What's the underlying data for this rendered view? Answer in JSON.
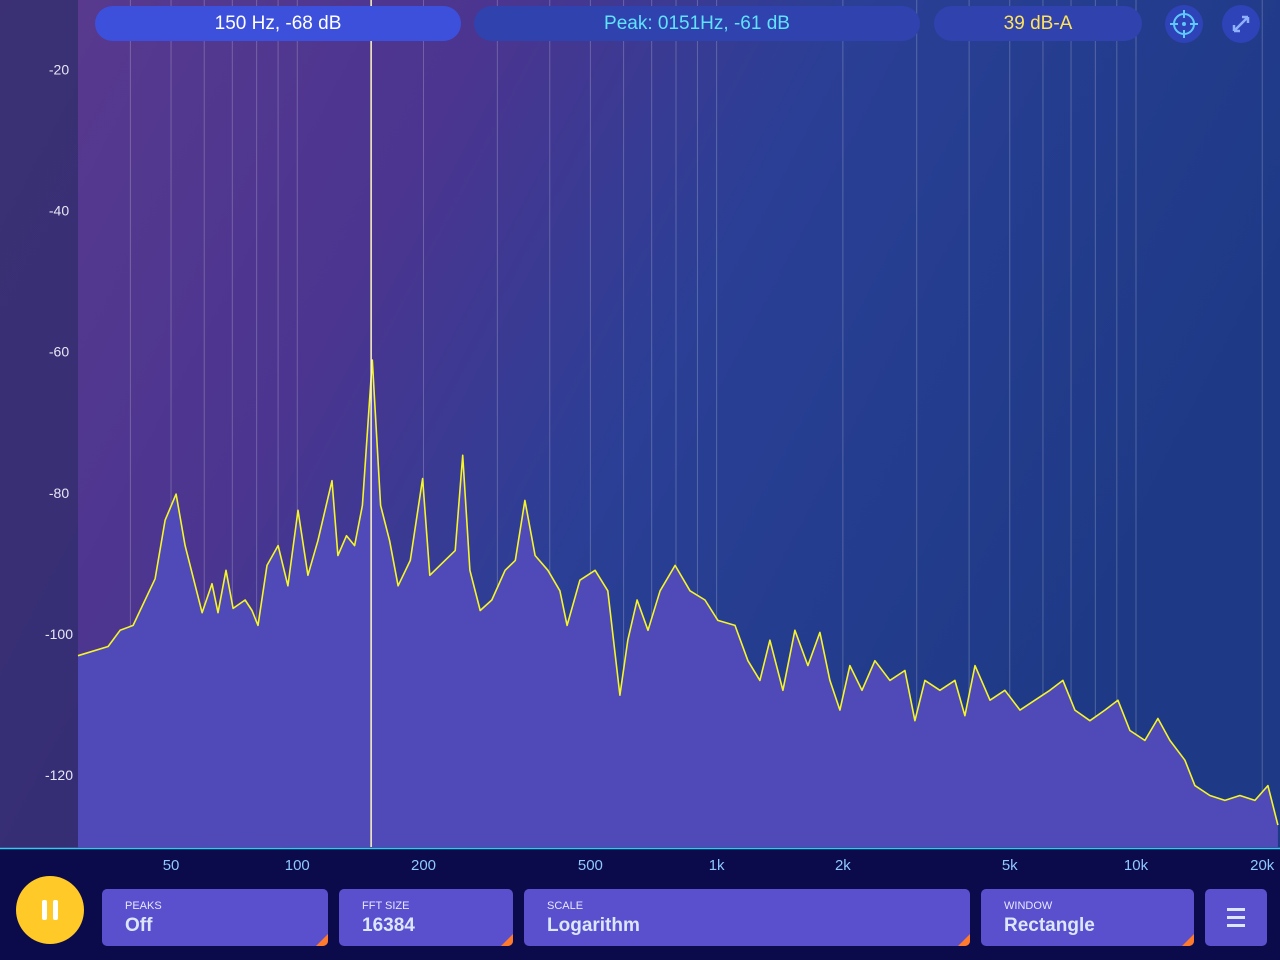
{
  "status_bar": {
    "cursor": "150 Hz, -68 dB",
    "peak": "Peak: 0151Hz, -61 dB",
    "level": "39 dB-A"
  },
  "chart_data": {
    "type": "area",
    "xscale": "log",
    "xlim": [
      30,
      22050
    ],
    "ylim": [
      -130,
      -10
    ],
    "yticks": [
      -20,
      -40,
      -60,
      -80,
      -100,
      -120
    ],
    "xticks": [
      50,
      100,
      200,
      500,
      {
        "value": 1000,
        "label": "1k"
      },
      {
        "value": 2000,
        "label": "2k"
      },
      {
        "value": 5000,
        "label": "5k"
      },
      {
        "value": 10000,
        "label": "10k"
      },
      {
        "value": 20000,
        "label": "20k"
      }
    ],
    "x_grid": [
      40,
      50,
      60,
      70,
      80,
      90,
      100,
      200,
      300,
      400,
      500,
      600,
      700,
      800,
      900,
      1000,
      2000,
      3000,
      4000,
      5000,
      6000,
      7000,
      8000,
      9000,
      10000,
      20000
    ],
    "cursor_x": 150,
    "color": "#f5f52a",
    "fill": "#4f4ab8",
    "x": [
      30,
      35.4,
      37.8,
      40.6,
      45.8,
      48.4,
      51.4,
      54.0,
      59.3,
      62.6,
      64.7,
      67.6,
      70.3,
      75.1,
      78.0,
      80.6,
      84.7,
      90.0,
      95.0,
      100.4,
      106,
      112,
      121,
      125,
      131,
      137,
      143,
      151,
      158,
      166,
      174,
      186,
      199,
      207,
      225,
      238,
      248,
      258,
      273,
      291,
      313,
      331,
      349,
      369,
      396,
      423,
      440,
      472,
      513,
      550,
      588,
      614,
      646,
      686,
      733,
      796,
      864,
      938,
      1007,
      1106,
      1187,
      1268,
      1340,
      1439,
      1537,
      1651,
      1763,
      1863,
      1968,
      2079,
      2221,
      2384,
      2589,
      2812,
      2970,
      3138,
      3408,
      3699,
      3909,
      4131,
      4485,
      4869,
      5289,
      5739,
      6234,
      6693,
      7152,
      7764,
      8433,
      9054,
      9669,
      10500,
      11277,
      12045,
      13080,
      13818,
      15003,
      16293,
      17694,
      19215,
      20634,
      21792
    ],
    "values": [
      -102.9,
      -101.6,
      -99.3,
      -98.6,
      -92,
      -83.7,
      -80,
      -87.3,
      -96.8,
      -92.7,
      -96.8,
      -90.8,
      -96.2,
      -95,
      -96.5,
      -98.6,
      -90.1,
      -87.3,
      -93,
      -82.3,
      -91.5,
      -86.6,
      -78.1,
      -88.7,
      -85.9,
      -87.3,
      -81.6,
      -61,
      -81.6,
      -86.6,
      -93,
      -89.4,
      -77.8,
      -91.5,
      -89.4,
      -88,
      -74.5,
      -90.8,
      -96.5,
      -95,
      -90.8,
      -89.4,
      -80.9,
      -88.7,
      -90.8,
      -93.7,
      -98.6,
      -92.2,
      -90.8,
      -93.7,
      -108.5,
      -100.7,
      -95,
      -99.3,
      -93.7,
      -90.1,
      -93.7,
      -95,
      -97.9,
      -98.6,
      -103.6,
      -106.4,
      -100.7,
      -107.8,
      -99.3,
      -104.3,
      -99.6,
      -106.4,
      -110.6,
      -104.3,
      -107.8,
      -103.6,
      -106.4,
      -105,
      -112.1,
      -106.4,
      -107.8,
      -106.4,
      -111.4,
      -104.3,
      -109.2,
      -107.8,
      -110.6,
      -109.2,
      -107.8,
      -106.4,
      -110.6,
      -112.1,
      -110.6,
      -109.2,
      -113.5,
      -114.9,
      -111.8,
      -114.9,
      -117.7,
      -121.3,
      -122.7,
      -123.4,
      -122.7,
      -123.4,
      -121.3,
      -126.9
    ]
  },
  "controls": {
    "peaks": {
      "label": "PEAKS",
      "value": "Off"
    },
    "fft_size": {
      "label": "FFT SIZE",
      "value": 16384
    },
    "scale": {
      "label": "SCALE",
      "value": "Logarithm"
    },
    "window": {
      "label": "WINDOW",
      "value": "Rectangle"
    }
  }
}
